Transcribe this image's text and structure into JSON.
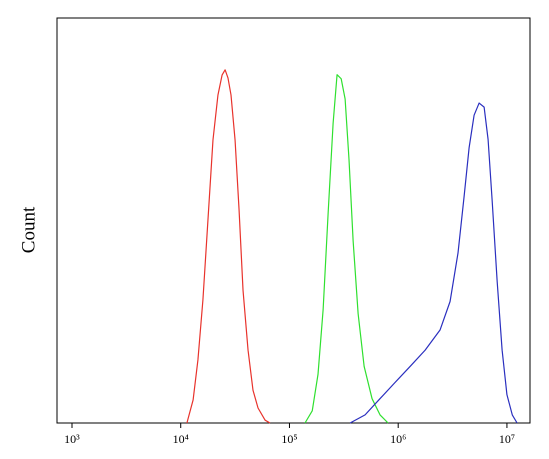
{
  "chart_data": {
    "type": "line",
    "y_label": "Count",
    "x_log": true,
    "xlim": [
      728,
      16300000
    ],
    "ylim": [
      0,
      100
    ],
    "xticks": [
      {
        "value": 1000,
        "label": "10³"
      },
      {
        "value": 10000,
        "label": "10⁴"
      },
      {
        "value": 100000,
        "label": "10⁵"
      },
      {
        "value": 1000000,
        "label": "10⁶"
      },
      {
        "value": 10000000,
        "label": "10⁷"
      }
    ],
    "series": [
      {
        "color": "#e8332c",
        "x": [
          11400,
          13000,
          14400,
          16000,
          17800,
          19800,
          22000,
          24000,
          25600,
          27200,
          29000,
          31600,
          34400,
          37400,
          41600,
          46200,
          51400,
          59700,
          66300
        ],
        "values": [
          0,
          5.7,
          15.6,
          30.4,
          50.1,
          69.9,
          81.0,
          85.9,
          87.2,
          85.2,
          81.0,
          69.9,
          52.6,
          32.8,
          18.0,
          8.1,
          3.7,
          0.7,
          0
        ]
      },
      {
        "color": "#2fe02f",
        "x": [
          139000,
          162000,
          183000,
          204000,
          227000,
          252000,
          274000,
          299000,
          325000,
          353000,
          385000,
          428000,
          486000,
          575000,
          681000,
          807000
        ],
        "values": [
          0,
          3,
          12,
          28,
          52,
          74,
          86,
          85,
          80,
          65,
          45,
          27,
          14,
          6,
          2,
          0
        ]
      },
      {
        "color": "#2a2fbf",
        "x": [
          361000,
          496000,
          680000,
          935000,
          1290000,
          1770000,
          2430000,
          3000000,
          3550000,
          4040000,
          4490000,
          4990000,
          5550000,
          6170000,
          6710000,
          7310000,
          8130000,
          9030000,
          10000000,
          11200000,
          12400000
        ],
        "values": [
          0,
          2,
          6,
          10,
          14,
          18,
          23,
          30,
          42,
          56,
          68,
          76,
          79,
          78,
          70,
          55,
          35,
          18,
          7,
          2,
          0
        ]
      }
    ]
  }
}
